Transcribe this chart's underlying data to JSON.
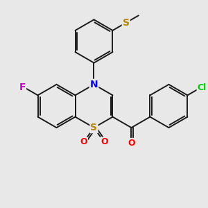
{
  "bg_color": "#e8e8e8",
  "bond_color": "#1a1a1a",
  "colors": {
    "N": "#0000ff",
    "S_ring": "#b8860b",
    "S_thio": "#b8860b",
    "O": "#ff0000",
    "F": "#cc00cc",
    "Cl": "#00cc00",
    "C": "#1a1a1a"
  },
  "lw": 1.4,
  "font_size": 9,
  "figsize": [
    3.0,
    3.0
  ],
  "dpi": 100
}
